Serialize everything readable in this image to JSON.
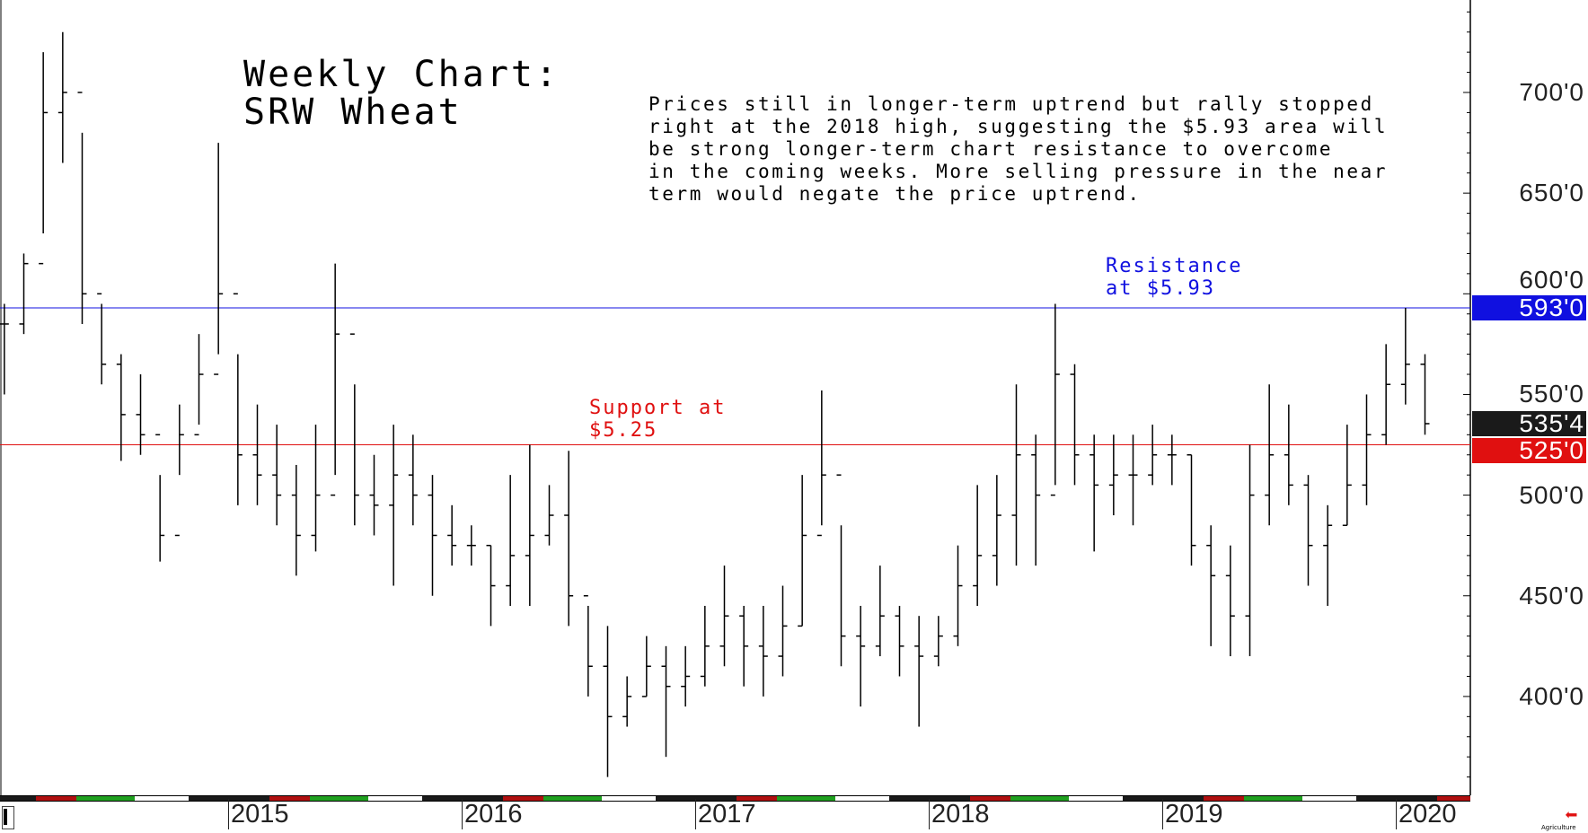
{
  "chart_data": {
    "type": "ohlc-bar",
    "title": "Weekly Chart:\nSRW Wheat",
    "annotation": "Prices still in longer-term uptrend but rally stopped\nright at the 2018 high, suggesting the $5.93 area will\nbe strong longer-term chart resistance to overcome\nin the coming weeks. More selling pressure in the near\nterm would negate the price uptrend.",
    "resistance": {
      "label": "Resistance\nat $5.93",
      "value": 593,
      "tag": "593'0",
      "color": "#1010e0"
    },
    "support": {
      "label": "Support at\n$5.25",
      "value": 525,
      "tag": "525'0",
      "color": "#e01010"
    },
    "last_price": {
      "value": 535.5,
      "tag": "535'4",
      "color": "#1a1a1a"
    },
    "ylim": [
      350,
      745
    ],
    "y_ticks": [
      {
        "v": 700,
        "label": "700'0"
      },
      {
        "v": 650,
        "label": "650'0"
      },
      {
        "v": 600,
        "label": "600'0"
      },
      {
        "v": 550,
        "label": "550'0"
      },
      {
        "v": 500,
        "label": "500'0"
      },
      {
        "v": 450,
        "label": "450'0"
      },
      {
        "v": 400,
        "label": "400'0"
      }
    ],
    "x_ticks": [
      "2015",
      "2016",
      "2017",
      "2018",
      "2019",
      "2020"
    ],
    "columns": [
      "month",
      "high",
      "low",
      "close"
    ],
    "bars": [
      [
        "2014-01",
        595,
        550,
        585
      ],
      [
        "2014-02",
        620,
        580,
        615
      ],
      [
        "2014-03",
        720,
        630,
        690
      ],
      [
        "2014-04",
        730,
        665,
        700
      ],
      [
        "2014-05",
        680,
        585,
        600
      ],
      [
        "2014-06",
        595,
        555,
        565
      ],
      [
        "2014-07",
        570,
        517,
        540
      ],
      [
        "2014-08",
        560,
        520,
        530
      ],
      [
        "2014-09",
        510,
        467,
        480
      ],
      [
        "2014-10",
        545,
        510,
        530
      ],
      [
        "2014-11",
        580,
        535,
        560
      ],
      [
        "2014-12",
        675,
        570,
        600
      ],
      [
        "2015-01",
        570,
        495,
        520
      ],
      [
        "2015-02",
        545,
        495,
        510
      ],
      [
        "2015-03",
        535,
        485,
        500
      ],
      [
        "2015-04",
        515,
        460,
        480
      ],
      [
        "2015-05",
        535,
        472,
        500
      ],
      [
        "2015-06",
        615,
        510,
        580
      ],
      [
        "2015-07",
        555,
        485,
        500
      ],
      [
        "2015-08",
        520,
        480,
        495
      ],
      [
        "2015-09",
        535,
        455,
        510
      ],
      [
        "2015-10",
        530,
        485,
        500
      ],
      [
        "2015-11",
        510,
        450,
        480
      ],
      [
        "2015-12",
        495,
        465,
        475
      ],
      [
        "2016-01",
        485,
        465,
        475
      ],
      [
        "2016-02",
        475,
        435,
        455
      ],
      [
        "2016-03",
        510,
        445,
        470
      ],
      [
        "2016-04",
        525,
        445,
        480
      ],
      [
        "2016-05",
        505,
        475,
        490
      ],
      [
        "2016-06",
        522,
        435,
        450
      ],
      [
        "2016-07",
        445,
        400,
        415
      ],
      [
        "2016-08",
        435,
        360,
        390
      ],
      [
        "2016-09",
        410,
        385,
        400
      ],
      [
        "2016-10",
        430,
        400,
        415
      ],
      [
        "2016-11",
        425,
        370,
        405
      ],
      [
        "2016-12",
        425,
        395,
        410
      ],
      [
        "2017-01",
        445,
        405,
        425
      ],
      [
        "2017-02",
        465,
        415,
        440
      ],
      [
        "2017-03",
        445,
        405,
        425
      ],
      [
        "2017-04",
        445,
        400,
        420
      ],
      [
        "2017-05",
        455,
        410,
        435
      ],
      [
        "2017-06",
        510,
        435,
        480
      ],
      [
        "2017-07",
        552,
        485,
        510
      ],
      [
        "2017-08",
        485,
        415,
        430
      ],
      [
        "2017-09",
        445,
        395,
        425
      ],
      [
        "2017-10",
        465,
        420,
        440
      ],
      [
        "2017-11",
        445,
        410,
        425
      ],
      [
        "2017-12",
        440,
        385,
        420
      ],
      [
        "2018-01",
        440,
        415,
        430
      ],
      [
        "2018-02",
        475,
        425,
        455
      ],
      [
        "2018-03",
        505,
        445,
        470
      ],
      [
        "2018-04",
        510,
        455,
        490
      ],
      [
        "2018-05",
        555,
        465,
        520
      ],
      [
        "2018-06",
        530,
        465,
        500
      ],
      [
        "2018-07",
        595,
        505,
        560
      ],
      [
        "2018-08",
        565,
        505,
        520
      ],
      [
        "2018-09",
        530,
        472,
        505
      ],
      [
        "2018-10",
        530,
        490,
        510
      ],
      [
        "2018-11",
        530,
        485,
        510
      ],
      [
        "2018-12",
        535,
        505,
        520
      ],
      [
        "2019-01",
        530,
        505,
        520
      ],
      [
        "2019-02",
        520,
        465,
        475
      ],
      [
        "2019-03",
        485,
        425,
        460
      ],
      [
        "2019-04",
        475,
        420,
        440
      ],
      [
        "2019-05",
        525,
        420,
        500
      ],
      [
        "2019-06",
        555,
        485,
        520
      ],
      [
        "2019-07",
        545,
        495,
        505
      ],
      [
        "2019-08",
        510,
        455,
        475
      ],
      [
        "2019-09",
        495,
        445,
        485
      ],
      [
        "2019-10",
        535,
        485,
        505
      ],
      [
        "2019-11",
        550,
        495,
        530
      ],
      [
        "2019-12",
        575,
        525,
        555
      ],
      [
        "2020-01",
        593,
        545,
        565
      ],
      [
        "2020-02",
        570,
        530,
        535.5
      ]
    ]
  },
  "footer": {
    "brand": "Agriculture"
  }
}
